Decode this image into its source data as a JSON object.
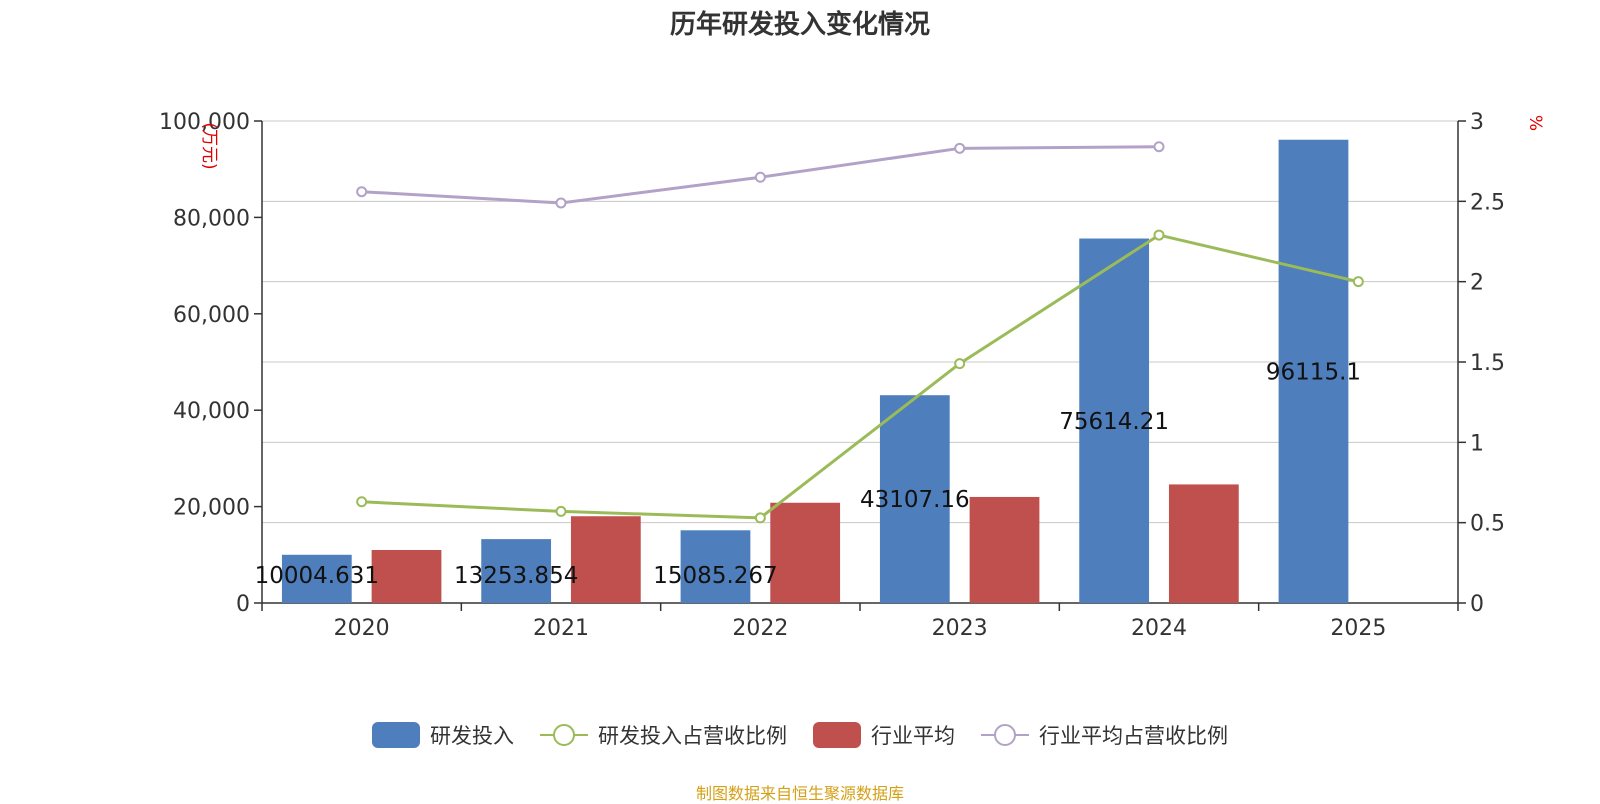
{
  "chart_data": {
    "type": "bar",
    "title": "历年研发投入变化情况",
    "y_left_unit": "(万元)",
    "y_right_unit": "%",
    "categories": [
      "2020",
      "2021",
      "2022",
      "2023",
      "2024",
      "2025"
    ],
    "y_left_lim": [
      0,
      100000
    ],
    "y_left_ticks": [
      "0",
      "20,000",
      "40,000",
      "60,000",
      "80,000",
      "100,000"
    ],
    "y_left_tick_values": [
      0,
      20000,
      40000,
      60000,
      80000,
      100000
    ],
    "y_right_lim": [
      0,
      3
    ],
    "y_right_ticks": [
      "0",
      "0.5",
      "1",
      "1.5",
      "2",
      "2.5",
      "3"
    ],
    "y_right_tick_values": [
      0,
      0.5,
      1,
      1.5,
      2,
      2.5,
      3
    ],
    "grid": true,
    "legend_position": "bottom-center",
    "series": [
      {
        "name": "研发投入",
        "type": "bar",
        "axis": "left",
        "color": "#4e7fbc",
        "values": [
          10004.631,
          13253.854,
          15085.267,
          43107.16,
          75614.21,
          96115.1
        ],
        "labels": [
          "10004.631",
          "13253.854",
          "15085.267",
          "43107.16",
          "75614.21",
          "96115.1"
        ]
      },
      {
        "name": "研发投入占营收比例",
        "type": "line",
        "axis": "right",
        "color": "#9bbb59",
        "values": [
          0.63,
          0.57,
          0.53,
          1.49,
          2.29,
          2.0
        ]
      },
      {
        "name": "行业平均",
        "type": "bar",
        "axis": "left",
        "color": "#c0504d",
        "values": [
          11000,
          18000,
          20800,
          22000,
          24600,
          null
        ]
      },
      {
        "name": "行业平均占营收比例",
        "type": "line",
        "axis": "right",
        "color": "#b3a2c7",
        "values": [
          2.56,
          2.49,
          2.65,
          2.83,
          2.84,
          null
        ]
      }
    ]
  },
  "source_text": "制图数据来自恒生聚源数据库",
  "source_color": "#d4a017"
}
